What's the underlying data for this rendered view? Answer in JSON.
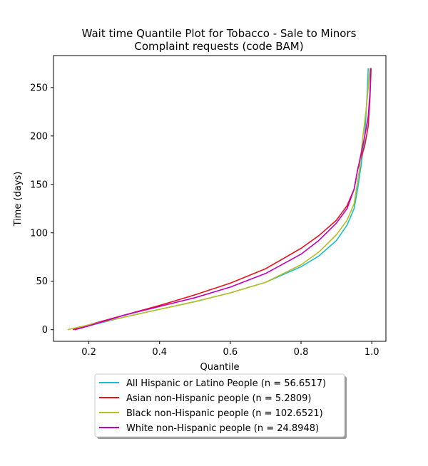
{
  "chart_data": {
    "type": "line",
    "title_line1": "Wait time Quantile Plot for Tobacco - Sale to Minors",
    "title_line2": "Complaint  requests (code BAM)",
    "xlabel": "Quantile",
    "ylabel": "Time (days)",
    "xlim": [
      0.1,
      1.04
    ],
    "ylim": [
      -12,
      283
    ],
    "x_ticks": [
      0.2,
      0.4,
      0.6,
      0.8,
      1.0
    ],
    "x_tick_labels": [
      "0.2",
      "0.4",
      "0.6",
      "0.8",
      "1.0"
    ],
    "y_ticks": [
      0,
      50,
      100,
      150,
      200,
      250
    ],
    "y_tick_labels": [
      "0",
      "50",
      "100",
      "150",
      "200",
      "250"
    ],
    "grid": false,
    "legend_position": "below the plot",
    "series": [
      {
        "name": "All Hispanic or Latino People (n = 56.6517)",
        "color": "#17becf",
        "points": [
          [
            0.16,
            0
          ],
          [
            0.2,
            4
          ],
          [
            0.3,
            13
          ],
          [
            0.4,
            21
          ],
          [
            0.5,
            29
          ],
          [
            0.6,
            38
          ],
          [
            0.7,
            49
          ],
          [
            0.8,
            65
          ],
          [
            0.85,
            76
          ],
          [
            0.9,
            92
          ],
          [
            0.93,
            108
          ],
          [
            0.95,
            125
          ],
          [
            0.96,
            145
          ],
          [
            0.97,
            170
          ],
          [
            0.98,
            200
          ],
          [
            0.985,
            230
          ],
          [
            0.988,
            250
          ],
          [
            0.99,
            270
          ]
        ]
      },
      {
        "name": "Asian non-Hispanic people (n = 5.2809)",
        "color": "#e8141c",
        "points": [
          [
            0.155,
            0
          ],
          [
            0.2,
            5
          ],
          [
            0.3,
            15
          ],
          [
            0.4,
            25
          ],
          [
            0.5,
            36
          ],
          [
            0.6,
            48
          ],
          [
            0.7,
            63
          ],
          [
            0.8,
            84
          ],
          [
            0.85,
            97
          ],
          [
            0.9,
            113
          ],
          [
            0.93,
            128
          ],
          [
            0.95,
            145
          ],
          [
            0.96,
            165
          ],
          [
            0.98,
            190
          ],
          [
            0.99,
            210
          ],
          [
            0.995,
            240
          ],
          [
            0.997,
            260
          ],
          [
            0.998,
            270
          ]
        ]
      },
      {
        "name": "Black non-Hispanic people (n = 102.6521)",
        "color": "#bcbd22",
        "points": [
          [
            0.14,
            0
          ],
          [
            0.2,
            5
          ],
          [
            0.3,
            13
          ],
          [
            0.4,
            21
          ],
          [
            0.5,
            29
          ],
          [
            0.6,
            38
          ],
          [
            0.7,
            49
          ],
          [
            0.8,
            67
          ],
          [
            0.85,
            80
          ],
          [
            0.9,
            98
          ],
          [
            0.93,
            113
          ],
          [
            0.95,
            130
          ],
          [
            0.965,
            165
          ],
          [
            0.975,
            200
          ],
          [
            0.985,
            230
          ],
          [
            0.99,
            250
          ],
          [
            0.995,
            270
          ]
        ]
      },
      {
        "name": "White non-Hispanic people (n = 24.8948)",
        "color": "#bf00bf",
        "points": [
          [
            0.16,
            0
          ],
          [
            0.2,
            4
          ],
          [
            0.3,
            15
          ],
          [
            0.4,
            24
          ],
          [
            0.5,
            33
          ],
          [
            0.6,
            44
          ],
          [
            0.7,
            58
          ],
          [
            0.8,
            78
          ],
          [
            0.85,
            92
          ],
          [
            0.9,
            110
          ],
          [
            0.93,
            125
          ],
          [
            0.95,
            145
          ],
          [
            0.96,
            165
          ],
          [
            0.97,
            182
          ],
          [
            0.98,
            200
          ],
          [
            0.99,
            220
          ],
          [
            0.995,
            245
          ],
          [
            0.997,
            270
          ]
        ]
      }
    ]
  }
}
